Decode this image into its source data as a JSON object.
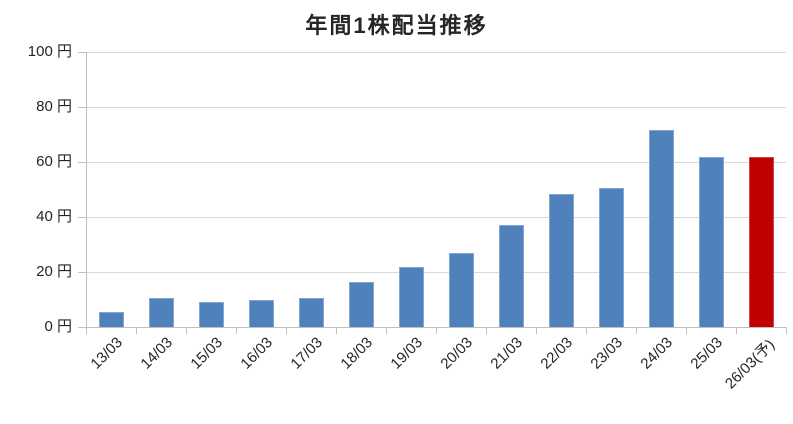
{
  "chart_data": {
    "type": "bar",
    "title": "年間1株配当推移",
    "unit": "円",
    "categories": [
      "13/03",
      "14/03",
      "15/03",
      "16/03",
      "17/03",
      "18/03",
      "19/03",
      "20/03",
      "21/03",
      "22/03",
      "23/03",
      "24/03",
      "25/03",
      "26/03(予)"
    ],
    "values": [
      5.5,
      10.5,
      9,
      10,
      10.5,
      16.5,
      22,
      27,
      37,
      48.5,
      50.5,
      71.5,
      62,
      62
    ],
    "highlight_index": 13,
    "ylim": [
      0,
      100
    ],
    "ytick_step": 20,
    "ytick_labels": [
      "0 円",
      "20 円",
      "40 円",
      "60 円",
      "80 円",
      "100 円"
    ],
    "grid": true,
    "legend": "none",
    "colors": {
      "bar": "#4F81BD",
      "bar_border": "#83A7D1",
      "highlight_bar": "#C00000",
      "highlight_border": "#CE4747",
      "gridline": "#D9D9D9",
      "axis": "#BFBFBF",
      "text": "#262626",
      "background": "#FFFFFF"
    }
  }
}
